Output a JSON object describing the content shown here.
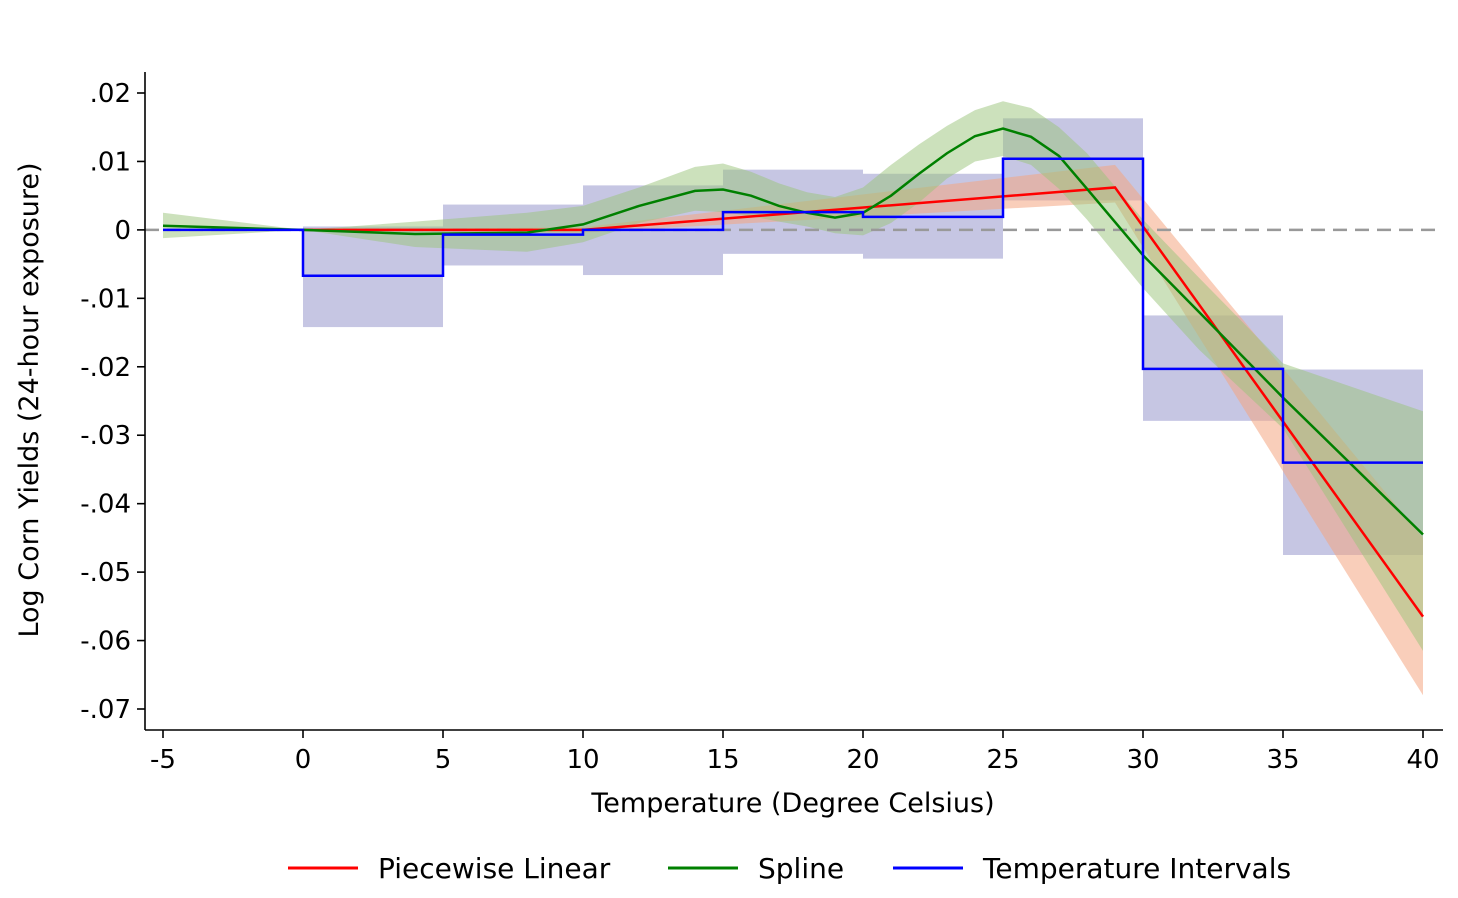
{
  "chart_data": {
    "type": "line",
    "title": "",
    "xlabel": "Temperature (Degree Celsius)",
    "ylabel": "Log Corn Yields (24-hour exposure)",
    "xlim": [
      -5,
      40
    ],
    "ylim": [
      -0.072,
      0.022
    ],
    "xticks": [
      -5,
      0,
      5,
      10,
      15,
      20,
      25,
      30,
      35,
      40
    ],
    "xtick_labels": [
      "-5",
      "0",
      "5",
      "10",
      "15",
      "20",
      "25",
      "30",
      "35",
      "40"
    ],
    "yticks": [
      0.02,
      0.01,
      0,
      -0.01,
      -0.02,
      -0.03,
      -0.04,
      -0.05,
      -0.06,
      -0.07
    ],
    "ytick_labels": [
      ".02",
      ".01",
      "0",
      "-.01",
      "-.02",
      "-.03",
      "-.04",
      "-.05",
      "-.06",
      "-.07"
    ],
    "reference_line": {
      "y": 0,
      "style": "dashed",
      "color": "#999999"
    },
    "grid": false,
    "legend_position": "bottom",
    "series": [
      {
        "name": "Piecewise Linear",
        "kind": "line",
        "color": "#ff0000",
        "band_color": "#f4a582",
        "x": [
          0,
          10,
          29,
          40
        ],
        "y": [
          0,
          0,
          0.0062,
          -0.0565
        ],
        "ci_lower": [
          0,
          -0.0004,
          0.004,
          -0.068
        ],
        "ci_upper": [
          0,
          0.0004,
          0.0095,
          -0.045
        ]
      },
      {
        "name": "Spline",
        "kind": "line",
        "color": "#008000",
        "band_color": "#9ac47a",
        "x": [
          -5,
          0,
          4,
          8,
          10,
          12,
          14,
          15,
          16,
          17,
          18,
          19,
          20,
          21,
          22,
          23,
          24,
          25,
          26,
          27,
          28,
          30,
          32,
          35,
          40
        ],
        "y": [
          0.0006,
          0,
          -0.0006,
          -0.0004,
          0.0008,
          0.0035,
          0.0057,
          0.0059,
          0.005,
          0.0035,
          0.0025,
          0.0018,
          0.0025,
          0.005,
          0.0082,
          0.0112,
          0.0137,
          0.0148,
          0.0136,
          0.0108,
          0.006,
          -0.0037,
          -0.012,
          -0.0245,
          -0.0445
        ],
        "ci_lower": [
          -0.0012,
          0,
          -0.0025,
          -0.0032,
          -0.0018,
          0.001,
          0.0028,
          0.0026,
          0.002,
          0.0012,
          0.0005,
          -0.0005,
          -0.0008,
          0.001,
          0.004,
          0.0075,
          0.01,
          0.0108,
          0.0095,
          0.006,
          0.0015,
          -0.0085,
          -0.0175,
          -0.029,
          -0.0615
        ],
        "ci_upper": [
          0.0025,
          0,
          0.0012,
          0.0025,
          0.0035,
          0.0062,
          0.0092,
          0.0097,
          0.0085,
          0.0068,
          0.0055,
          0.0048,
          0.0062,
          0.0095,
          0.0125,
          0.0152,
          0.0175,
          0.0188,
          0.0178,
          0.015,
          0.0112,
          0.0015,
          -0.007,
          -0.0195,
          -0.0265
        ]
      },
      {
        "name": "Temperature Intervals",
        "kind": "step",
        "color": "#0000ff",
        "band_color": "#8080c0",
        "intervals": [
          {
            "x0": -5,
            "x1": 0,
            "y": 0,
            "lo": 0,
            "hi": 0
          },
          {
            "x0": 0,
            "x1": 5,
            "y": -0.0067,
            "lo": -0.0142,
            "hi": 0.0005
          },
          {
            "x0": 5,
            "x1": 10,
            "y": -0.0007,
            "lo": -0.0052,
            "hi": 0.0037
          },
          {
            "x0": 10,
            "x1": 15,
            "y": 0,
            "lo": -0.0066,
            "hi": 0.0065
          },
          {
            "x0": 15,
            "x1": 20,
            "y": 0.0026,
            "lo": -0.0035,
            "hi": 0.0088
          },
          {
            "x0": 20,
            "x1": 25,
            "y": 0.0019,
            "lo": -0.0042,
            "hi": 0.0082
          },
          {
            "x0": 25,
            "x1": 30,
            "y": 0.0104,
            "lo": 0.0043,
            "hi": 0.0163
          },
          {
            "x0": 30,
            "x1": 35,
            "y": -0.0203,
            "lo": -0.0279,
            "hi": -0.0125
          },
          {
            "x0": 35,
            "x1": 40,
            "y": -0.034,
            "lo": -0.0475,
            "hi": -0.0204
          }
        ]
      }
    ]
  }
}
